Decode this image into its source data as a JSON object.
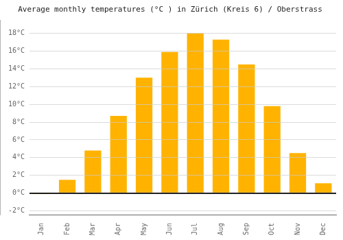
{
  "chart_data": {
    "type": "bar",
    "title": "Average monthly temperatures (°C ) in Zürich (Kreis 6) / Oberstrass",
    "categories": [
      "Jan",
      "Feb",
      "Mar",
      "Apr",
      "May",
      "Jun",
      "Jul",
      "Aug",
      "Sep",
      "Oct",
      "Nov",
      "Dec"
    ],
    "values": [
      -0.1,
      1.5,
      4.8,
      8.7,
      13.0,
      15.9,
      18.0,
      17.3,
      14.5,
      9.8,
      4.5,
      1.1
    ],
    "color": "#FFB300",
    "ylim": [
      -2.5,
      19.5
    ],
    "yticks": [
      {
        "value": -2,
        "label": "-2°C"
      },
      {
        "value": 0,
        "label": "0°C"
      },
      {
        "value": 2,
        "label": "2°C"
      },
      {
        "value": 4,
        "label": "4°C"
      },
      {
        "value": 6,
        "label": "6°C"
      },
      {
        "value": 8,
        "label": "8°C"
      },
      {
        "value": 10,
        "label": "10°C"
      },
      {
        "value": 12,
        "label": "12°C"
      },
      {
        "value": 14,
        "label": "14°C"
      },
      {
        "value": 16,
        "label": "16°C"
      },
      {
        "value": 18,
        "label": "18°C"
      }
    ],
    "grid": true
  }
}
